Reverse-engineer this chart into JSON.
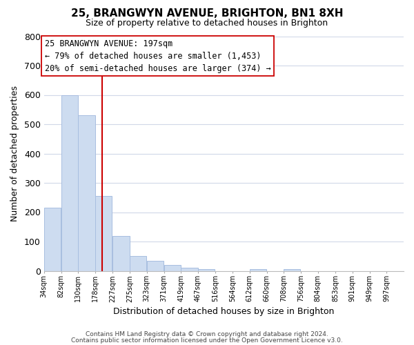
{
  "title": "25, BRANGWYN AVENUE, BRIGHTON, BN1 8XH",
  "subtitle": "Size of property relative to detached houses in Brighton",
  "xlabel": "Distribution of detached houses by size in Brighton",
  "ylabel": "Number of detached properties",
  "bar_left_edges": [
    34,
    82,
    130,
    178,
    227,
    275,
    323,
    371,
    419,
    467,
    516,
    564,
    612,
    660,
    708,
    756,
    804,
    853,
    901,
    949
  ],
  "bar_heights": [
    215,
    600,
    530,
    255,
    118,
    50,
    33,
    20,
    10,
    5,
    0,
    0,
    5,
    0,
    5,
    0,
    0,
    0,
    0,
    0
  ],
  "bin_width": 48,
  "tick_labels": [
    "34sqm",
    "82sqm",
    "130sqm",
    "178sqm",
    "227sqm",
    "275sqm",
    "323sqm",
    "371sqm",
    "419sqm",
    "467sqm",
    "516sqm",
    "564sqm",
    "612sqm",
    "660sqm",
    "708sqm",
    "756sqm",
    "804sqm",
    "853sqm",
    "901sqm",
    "949sqm",
    "997sqm"
  ],
  "bar_color": "#cddcf0",
  "bar_edge_color": "#a8bee0",
  "vline_x": 197,
  "vline_color": "#cc0000",
  "ylim": [
    0,
    800
  ],
  "yticks": [
    0,
    100,
    200,
    300,
    400,
    500,
    600,
    700,
    800
  ],
  "annotation_title": "25 BRANGWYN AVENUE: 197sqm",
  "annotation_line1": "← 79% of detached houses are smaller (1,453)",
  "annotation_line2": "20% of semi-detached houses are larger (374) →",
  "footer_line1": "Contains HM Land Registry data © Crown copyright and database right 2024.",
  "footer_line2": "Contains public sector information licensed under the Open Government Licence v3.0.",
  "background_color": "#ffffff",
  "grid_color": "#d0d8e8"
}
